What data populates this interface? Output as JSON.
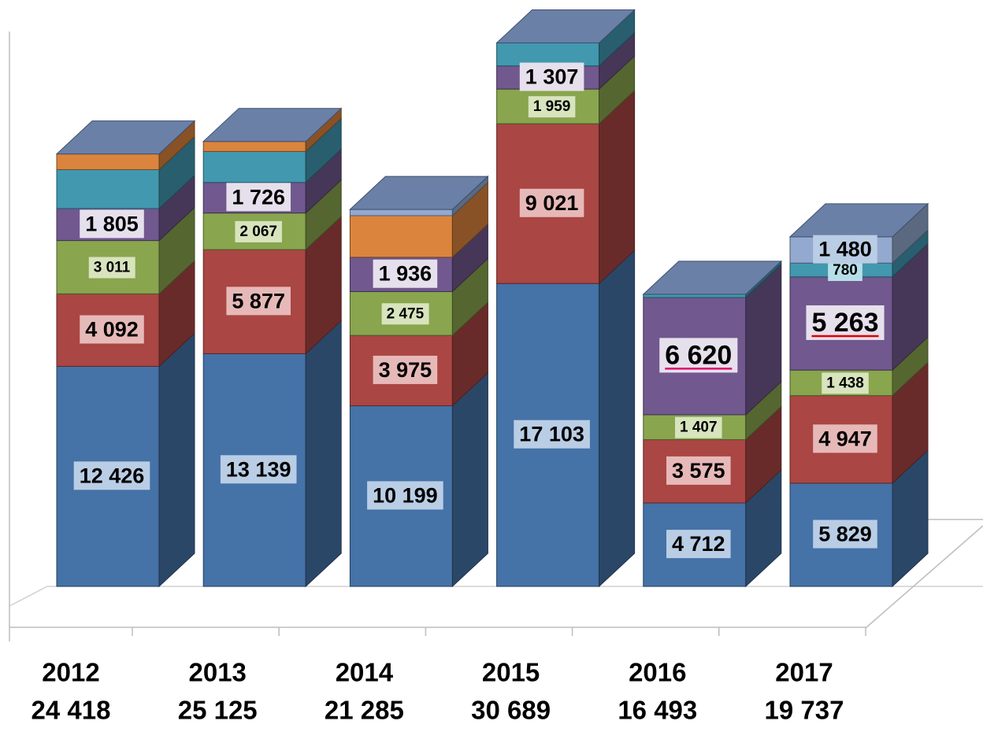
{
  "chart_data": {
    "type": "bar3d-stacked",
    "categories": [
      "2012",
      "2013",
      "2014",
      "2015",
      "2016",
      "2017"
    ],
    "totals": [
      24418,
      25125,
      21285,
      30689,
      16493,
      19737
    ],
    "totals_labels": [
      "24 418",
      "25 125",
      "21 285",
      "30 689",
      "16 493",
      "19 737"
    ],
    "ylim": [
      0,
      32000
    ],
    "series": [
      {
        "color": "#4572a7",
        "label_bg": "#b9cde5",
        "values": [
          12426,
          13139,
          10199,
          17103,
          4712,
          5829
        ],
        "value_labels": [
          "12 426",
          "13 139",
          "10 199",
          "17 103",
          "4 712",
          "5 829"
        ]
      },
      {
        "color": "#aa4643",
        "label_bg": "#e6b9b8",
        "values": [
          4092,
          5877,
          3975,
          9021,
          3575,
          4947
        ],
        "value_labels": [
          "4 092",
          "5 877",
          "3 975",
          "9 021",
          "3 575",
          "4 947"
        ]
      },
      {
        "color": "#89a54e",
        "label_bg": "#d7e4bd",
        "values": [
          3011,
          2067,
          2475,
          1959,
          1407,
          1438
        ],
        "value_labels": [
          "3 011",
          "2 067",
          "2 475",
          "1 959",
          "1 407",
          "1 438"
        ]
      },
      {
        "color": "#71588f",
        "label_bg": "#e6e0ec",
        "values": [
          1805,
          1726,
          1936,
          1307,
          6620,
          5263
        ],
        "value_labels": [
          "1 805",
          "1 726",
          "1 936",
          "1 307",
          "6 620",
          "5 263"
        ],
        "label_colors": [
          null,
          null,
          null,
          null,
          "#e0106a",
          "#e00000"
        ]
      },
      {
        "color": "#4198af",
        "label_bg": "#b7dee8",
        "values": [
          2200,
          1750,
          null,
          1299,
          179,
          780
        ],
        "value_labels": [
          null,
          null,
          null,
          null,
          null,
          "780"
        ]
      },
      {
        "color": "#db843d",
        "label_bg": "#fcd5b5",
        "values": [
          884,
          566,
          2350,
          null,
          null,
          null
        ],
        "value_labels": [
          null,
          null,
          null,
          null,
          null,
          null
        ]
      },
      {
        "color": "#93a9cf",
        "label_bg": "#b9cde5",
        "values": [
          null,
          null,
          350,
          null,
          null,
          1480
        ],
        "value_labels": [
          null,
          null,
          null,
          null,
          null,
          "1 480"
        ]
      }
    ]
  }
}
